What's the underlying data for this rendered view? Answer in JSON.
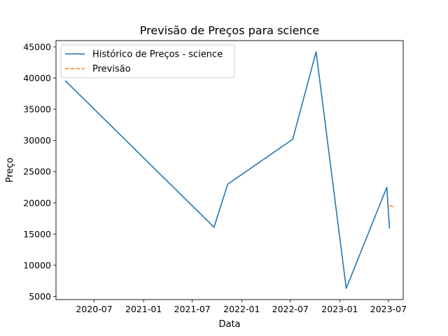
{
  "chart_data": {
    "type": "line",
    "title": "Previsão de Preços para science",
    "xlabel": "Data",
    "ylabel": "Preço",
    "x_range": [
      "2020-02-10",
      "2023-08-25"
    ],
    "ylim": [
      4500,
      46000
    ],
    "x_ticks": [
      "2020-07",
      "2021-01",
      "2021-07",
      "2022-01",
      "2022-07",
      "2023-01",
      "2023-07"
    ],
    "y_ticks": [
      5000,
      10000,
      15000,
      20000,
      25000,
      30000,
      35000,
      40000,
      45000
    ],
    "legend_position": "top-left",
    "grid": false,
    "series": [
      {
        "name": "Histórico de Preços - science",
        "color": "#1f77b4",
        "style": "solid",
        "points": [
          {
            "x": "2020-03-15",
            "y": 39600
          },
          {
            "x": "2021-09-20",
            "y": 16100
          },
          {
            "x": "2021-11-10",
            "y": 23000
          },
          {
            "x": "2022-07-10",
            "y": 30200
          },
          {
            "x": "2022-10-05",
            "y": 44200
          },
          {
            "x": "2023-01-25",
            "y": 6300
          },
          {
            "x": "2023-06-25",
            "y": 22500
          },
          {
            "x": "2023-07-05",
            "y": 15900
          }
        ]
      },
      {
        "name": "Previsão",
        "color": "#ff7f0e",
        "style": "dashed",
        "points": [
          {
            "x": "2023-07-05",
            "y": 19600
          },
          {
            "x": "2023-07-25",
            "y": 19300
          }
        ]
      }
    ]
  }
}
